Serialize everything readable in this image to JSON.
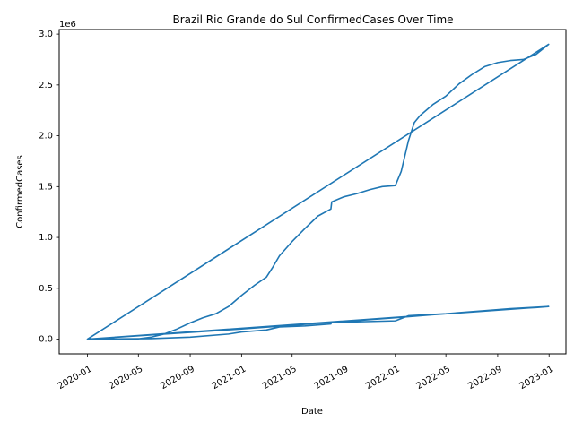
{
  "chart_data": {
    "type": "line",
    "title": "Brazil Rio Grande do Sul ConfirmedCases Over Time",
    "xlabel": "Date",
    "ylabel": "ConfirmedCases",
    "y_offset_label": "1e6",
    "xlim": [
      "2019-10-26",
      "2023-02-10"
    ],
    "ylim": [
      -0.145,
      3.045
    ],
    "x_ticks": [
      {
        "date": "2020-01-01",
        "label": "2020-01"
      },
      {
        "date": "2020-05-01",
        "label": "2020-05"
      },
      {
        "date": "2020-09-01",
        "label": "2020-09"
      },
      {
        "date": "2021-01-01",
        "label": "2021-01"
      },
      {
        "date": "2021-05-01",
        "label": "2021-05"
      },
      {
        "date": "2021-09-01",
        "label": "2021-09"
      },
      {
        "date": "2022-01-01",
        "label": "2022-01"
      },
      {
        "date": "2022-05-01",
        "label": "2022-05"
      },
      {
        "date": "2022-09-01",
        "label": "2022-09"
      },
      {
        "date": "2023-01-01",
        "label": "2023-01"
      }
    ],
    "y_ticks": [
      {
        "value": 0.0,
        "label": "0.0"
      },
      {
        "value": 0.5,
        "label": "0.5"
      },
      {
        "value": 1.0,
        "label": "1.0"
      },
      {
        "value": 1.5,
        "label": "1.5"
      },
      {
        "value": 2.0,
        "label": "2.0"
      },
      {
        "value": 2.5,
        "label": "2.5"
      },
      {
        "value": 3.0,
        "label": "3.0"
      }
    ],
    "series": [
      {
        "name": "ConfirmedCases",
        "color": "#1f77b4",
        "points": [
          [
            "2020-01-01",
            0.0
          ],
          [
            "2020-03-15",
            0.0
          ],
          [
            "2020-05-01",
            0.003
          ],
          [
            "2020-06-01",
            0.02
          ],
          [
            "2020-07-01",
            0.05
          ],
          [
            "2020-08-01",
            0.1
          ],
          [
            "2020-09-01",
            0.16
          ],
          [
            "2020-10-01",
            0.21
          ],
          [
            "2020-11-01",
            0.25
          ],
          [
            "2020-12-01",
            0.32
          ],
          [
            "2021-01-01",
            0.43
          ],
          [
            "2021-02-01",
            0.53
          ],
          [
            "2021-03-01",
            0.61
          ],
          [
            "2021-03-15",
            0.7
          ],
          [
            "2021-04-01",
            0.82
          ],
          [
            "2021-05-01",
            0.96
          ],
          [
            "2021-06-01",
            1.09
          ],
          [
            "2021-07-01",
            1.21
          ],
          [
            "2021-08-01",
            1.28
          ],
          [
            "2021-08-03",
            1.35
          ],
          [
            "2021-09-01",
            1.4
          ],
          [
            "2021-10-01",
            1.43
          ],
          [
            "2021-11-01",
            1.47
          ],
          [
            "2021-12-01",
            1.5
          ],
          [
            "2022-01-01",
            1.51
          ],
          [
            "2022-01-15",
            1.65
          ],
          [
            "2022-02-01",
            1.95
          ],
          [
            "2022-02-15",
            2.13
          ],
          [
            "2022-03-01",
            2.2
          ],
          [
            "2022-04-01",
            2.31
          ],
          [
            "2022-05-01",
            2.39
          ],
          [
            "2022-06-01",
            2.51
          ],
          [
            "2022-07-01",
            2.6
          ],
          [
            "2022-08-01",
            2.68
          ],
          [
            "2022-09-01",
            2.72
          ],
          [
            "2022-10-01",
            2.74
          ],
          [
            "2022-11-01",
            2.75
          ],
          [
            "2022-12-01",
            2.8
          ],
          [
            "2022-12-31",
            2.9
          ],
          [
            "2020-01-01",
            0.0
          ],
          [
            "2021-01-01",
            0.1
          ],
          [
            "2022-01-01",
            0.21
          ],
          [
            "2022-06-01",
            0.26
          ],
          [
            "2022-10-01",
            0.3
          ],
          [
            "2022-12-31",
            0.32
          ],
          [
            "2020-01-01",
            0.0
          ],
          [
            "2020-06-01",
            0.005
          ],
          [
            "2020-09-01",
            0.02
          ],
          [
            "2020-12-01",
            0.05
          ],
          [
            "2021-01-01",
            0.07
          ],
          [
            "2021-03-01",
            0.09
          ],
          [
            "2021-04-01",
            0.12
          ],
          [
            "2021-06-01",
            0.13
          ],
          [
            "2021-08-01",
            0.15
          ],
          [
            "2021-08-03",
            0.17
          ],
          [
            "2021-10-01",
            0.17
          ],
          [
            "2022-01-01",
            0.18
          ],
          [
            "2022-02-01",
            0.23
          ],
          [
            "2022-05-01",
            0.25
          ],
          [
            "2022-09-01",
            0.29
          ],
          [
            "2022-12-01",
            0.31
          ],
          [
            "2022-12-31",
            0.32
          ]
        ]
      }
    ]
  }
}
